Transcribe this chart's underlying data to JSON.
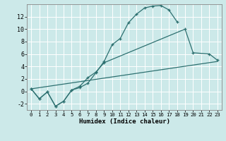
{
  "xlabel": "Humidex (Indice chaleur)",
  "bg_color": "#cce9e9",
  "grid_color": "#ffffff",
  "line_color": "#2d7070",
  "ylim": [
    -3,
    14
  ],
  "xlim": [
    -0.5,
    23.5
  ],
  "yticks": [
    -2,
    0,
    2,
    4,
    6,
    8,
    10,
    12
  ],
  "xticks": [
    0,
    1,
    2,
    3,
    4,
    5,
    6,
    7,
    8,
    9,
    10,
    11,
    12,
    13,
    14,
    15,
    16,
    17,
    18,
    19,
    20,
    21,
    22,
    23
  ],
  "line1_x": [
    0,
    1,
    2,
    3,
    4,
    5,
    6,
    7,
    8,
    9,
    10,
    11,
    12,
    13,
    14,
    15,
    16,
    17,
    18
  ],
  "line1_y": [
    0.4,
    -1.2,
    -0.1,
    -2.4,
    -1.6,
    0.2,
    0.6,
    1.3,
    3.0,
    4.8,
    7.5,
    8.5,
    11.0,
    12.4,
    13.4,
    13.7,
    13.8,
    13.1,
    11.2
  ],
  "line2_x": [
    0,
    1,
    2,
    3,
    4,
    5,
    6,
    7,
    8,
    9,
    19,
    20,
    22,
    23
  ],
  "line2_y": [
    0.4,
    -1.2,
    -0.1,
    -2.4,
    -1.6,
    0.2,
    0.8,
    2.2,
    3.1,
    4.6,
    10.0,
    6.2,
    6.0,
    5.0
  ],
  "line3_x": [
    0,
    23
  ],
  "line3_y": [
    0.4,
    4.8
  ]
}
